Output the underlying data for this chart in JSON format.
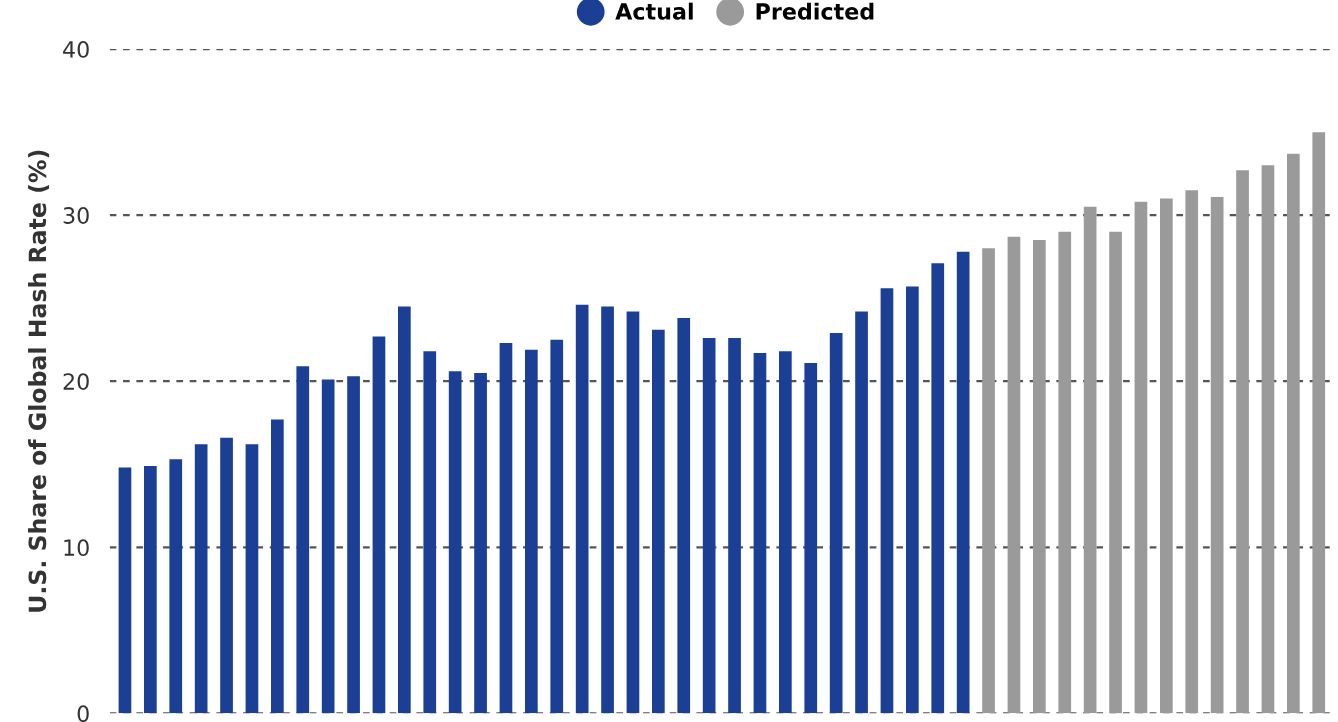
{
  "chart_data": {
    "type": "bar",
    "ylabel": "U.S. Share of Global Hash Rate (%)",
    "categories": [
      null,
      null,
      null,
      null,
      null,
      null,
      null,
      null,
      null,
      null,
      null,
      null,
      null,
      null,
      null,
      null,
      null,
      null,
      null,
      null,
      null,
      null,
      null,
      null,
      null,
      null,
      null,
      null,
      null,
      null,
      null,
      null,
      null,
      null,
      null,
      null,
      null,
      null,
      null,
      null,
      null,
      null,
      null,
      null,
      null,
      null,
      null,
      null
    ],
    "series": [
      {
        "name": "Actual",
        "color": "#1b3f94",
        "values": [
          14.8,
          14.9,
          15.3,
          16.2,
          16.6,
          16.2,
          17.7,
          20.9,
          20.1,
          20.3,
          22.7,
          24.5,
          21.8,
          20.6,
          20.5,
          22.3,
          21.9,
          22.5,
          24.6,
          24.5,
          24.2,
          23.1,
          23.8,
          22.6,
          22.6,
          21.7,
          21.8,
          21.1,
          22.9,
          24.2,
          25.6,
          25.7,
          27.1,
          27.8,
          null,
          null,
          null,
          null,
          null,
          null,
          null,
          null,
          null,
          null,
          null,
          null,
          null,
          null
        ]
      },
      {
        "name": "Predicted",
        "color": "#9a9a9a",
        "values": [
          null,
          null,
          null,
          null,
          null,
          null,
          null,
          null,
          null,
          null,
          null,
          null,
          null,
          null,
          null,
          null,
          null,
          null,
          null,
          null,
          null,
          null,
          null,
          null,
          null,
          null,
          null,
          null,
          null,
          null,
          null,
          null,
          null,
          null,
          28.0,
          28.7,
          28.5,
          29.0,
          30.5,
          29.0,
          30.8,
          31.0,
          31.5,
          31.1,
          32.7,
          33.0,
          33.7,
          35.0
        ]
      }
    ],
    "ylim": [
      0,
      40
    ],
    "yticks": [
      0,
      10,
      20,
      30,
      40
    ],
    "grid": "y",
    "legend": "top",
    "tick_labels": "y"
  }
}
